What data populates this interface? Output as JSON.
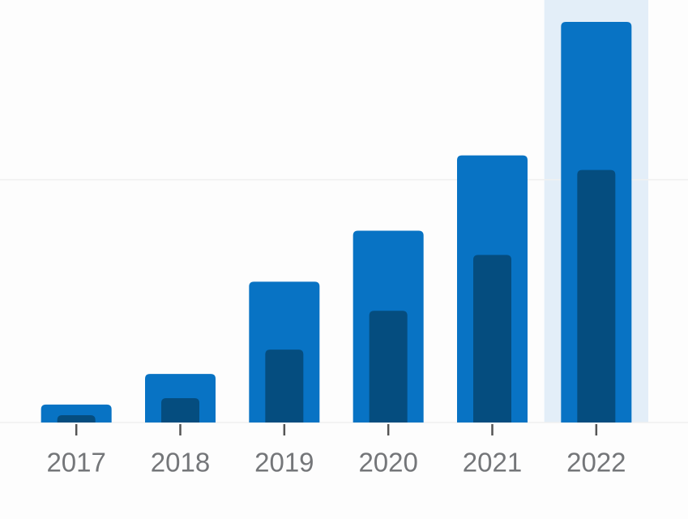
{
  "chart_data": {
    "type": "bar",
    "categories": [
      "2017",
      "2018",
      "2019",
      "2020",
      "2021",
      "2022"
    ],
    "series": [
      {
        "color": "#0873c4",
        "values": [
          0.074,
          0.2,
          0.58,
          0.79,
          1.1,
          1.65
        ]
      },
      {
        "color": "#054d7f",
        "values": [
          0.03,
          0.1,
          0.3,
          0.46,
          0.69,
          1.04
        ]
      }
    ],
    "ylim": [
      0,
      1.74
    ],
    "yticks": [
      0,
      1
    ],
    "grid": true,
    "highlight_index": 5,
    "highlight_color": "#e3eef8"
  }
}
